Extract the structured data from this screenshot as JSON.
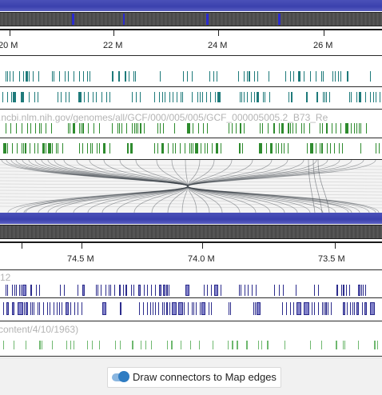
{
  "top_map": {
    "ruler_ticks": [
      {
        "label": "20 M",
        "value": 20
      },
      {
        "label": "22 M",
        "value": 22
      },
      {
        "label": "24 M",
        "value": 24
      },
      {
        "label": "26 M",
        "value": 26
      }
    ],
    "source_url_label": ".ncbi.nlm.nih.gov/genomes/all/GCF/000/005/005/GCF_000005005.2_B73_Re"
  },
  "bottom_map": {
    "ruler_ticks": [
      {
        "label": "74.5 M",
        "value": 74.5
      },
      {
        "label": "74.0 M",
        "value": 74.0
      },
      {
        "label": "73.5 M",
        "value": 73.5
      }
    ],
    "track_label_1": "12",
    "track_label_2": "content/4/10/1963)"
  },
  "controls": {
    "connectors_toggle_label": "Draw connectors to Map edges",
    "connectors_toggle_on": true
  },
  "colors": {
    "map_band": "#3b41ad",
    "teal_features": "#1e7a7a",
    "green_features": "#2e8b2e",
    "navy_features": "#2c2c8c",
    "light_green_features": "#6fb86f",
    "connector": "#3a4048",
    "toggle_accent": "#2f7cc2"
  }
}
